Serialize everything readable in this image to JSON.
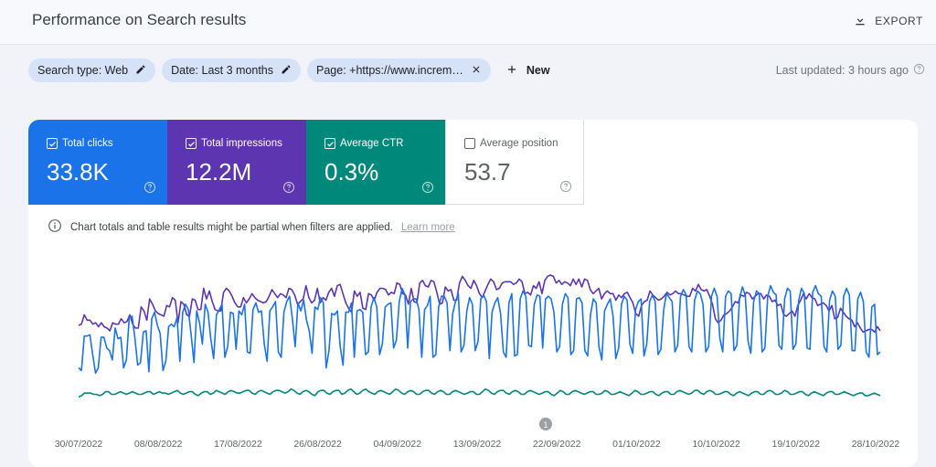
{
  "header": {
    "title": "Performance on Search results",
    "export_label": "EXPORT"
  },
  "filters": {
    "chips": [
      {
        "label": "Search type: Web",
        "icon": "edit-icon"
      },
      {
        "label": "Date: Last 3 months",
        "icon": "edit-icon"
      },
      {
        "label": "Page: +https://www.increm…",
        "icon": "close-icon"
      }
    ],
    "new_label": "New",
    "last_updated": "Last updated: 3 hours ago"
  },
  "metrics": [
    {
      "label": "Total clicks",
      "value": "33.8K",
      "checked": true,
      "color": "#1a73e8"
    },
    {
      "label": "Total impressions",
      "value": "12.2M",
      "checked": true,
      "color": "#5e35b1"
    },
    {
      "label": "Average CTR",
      "value": "0.3%",
      "checked": true,
      "color": "#00897b"
    },
    {
      "label": "Average position",
      "value": "53.7",
      "checked": false,
      "color": "#ffffff"
    }
  ],
  "notice": {
    "text": "Chart totals and table results might be partial when filters are applied.",
    "link": "Learn more"
  },
  "chart_data": {
    "type": "line",
    "x_labels": [
      "30/07/2022",
      "08/08/2022",
      "17/08/2022",
      "26/08/2022",
      "04/09/2022",
      "13/09/2022",
      "22/09/2022",
      "01/10/2022",
      "10/10/2022",
      "19/10/2022",
      "28/10/2022"
    ],
    "annotation": "1",
    "series": [
      {
        "color": "#5e35b1",
        "values": [
          0.62,
          0.63,
          0.7,
          0.66,
          0.66,
          0.63,
          0.64,
          0.61,
          0.64,
          0.61,
          0.6,
          0.58,
          0.64,
          0.63,
          0.63,
          0.67,
          0.64,
          0.65,
          0.7,
          0.63,
          0.6,
          0.6,
          0.76,
          0.73,
          0.66,
          0.82,
          0.78,
          0.73,
          0.71,
          0.7,
          0.69,
          0.77,
          0.76,
          0.83,
          0.81,
          0.64,
          0.8,
          0.78,
          0.7,
          0.69,
          0.82,
          0.81,
          0.74,
          0.74,
          0.9,
          0.82,
          0.88,
          0.8,
          0.74,
          0.73,
          0.73,
          0.87,
          0.9,
          0.88,
          0.84,
          0.79,
          0.76,
          0.76,
          0.83,
          0.79,
          0.82,
          0.86,
          0.83,
          0.81,
          0.8,
          0.79,
          0.8,
          0.84,
          0.89,
          0.86,
          0.83,
          0.86,
          0.85,
          0.83,
          0.9,
          0.89,
          0.85,
          0.78,
          0.8,
          0.82,
          0.92,
          0.83,
          0.79,
          0.81,
          0.9,
          0.79,
          0.83,
          0.81,
          0.87,
          0.9,
          0.84,
          0.92,
          0.93,
          0.86,
          0.79,
          0.75,
          0.72,
          0.88,
          0.84,
          0.87,
          0.75,
          0.74,
          0.86,
          0.85,
          0.81,
          0.87,
          0.9,
          0.9,
          0.89,
          0.85,
          0.87,
          0.86,
          0.94,
          0.93,
          0.86,
          0.85,
          0.78,
          0.9,
          0.8,
          0.79,
          0.94,
          0.96,
          0.92,
          0.91,
          0.96,
          0.95,
          0.87,
          0.78,
          0.79,
          0.91,
          0.88,
          0.89,
          0.81,
          0.81,
          0.94,
          0.99,
          0.96,
          0.92,
          0.9,
          0.96,
          0.92,
          0.86,
          0.83,
          0.88,
          0.93,
          0.97,
          0.95,
          0.89,
          0.9,
          0.94,
          0.95,
          0.95,
          0.95,
          0.93,
          0.94,
          0.97,
          0.95,
          0.86,
          0.87,
          0.85,
          0.92,
          0.9,
          0.95,
          0.86,
          0.96,
          0.99,
          1.0,
          0.99,
          0.94,
          0.96,
          0.93,
          0.95,
          0.94,
          0.92,
          0.97,
          0.93,
          0.97,
          0.91,
          0.97,
          0.96,
          0.89,
          0.86,
          0.88,
          0.9,
          0.82,
          0.86,
          0.88,
          0.86,
          0.86,
          0.81,
          0.85,
          0.83,
          0.86,
          0.87,
          0.83,
          0.79,
          0.71,
          0.69,
          0.77,
          0.8,
          0.81,
          0.88,
          0.85,
          0.83,
          0.81,
          0.82,
          0.84,
          0.87,
          0.85,
          0.86,
          0.88,
          0.86,
          0.86,
          0.85,
          0.84,
          0.84,
          0.9,
          0.88,
          0.93,
          0.89,
          0.88,
          0.89,
          0.84,
          0.78,
          0.67,
          0.64,
          0.66,
          0.7,
          0.71,
          0.73,
          0.76,
          0.8,
          0.79,
          0.85,
          0.84,
          0.87,
          0.86,
          0.82,
          0.84,
          0.86,
          0.86,
          0.82,
          0.85,
          0.84,
          0.8,
          0.81,
          0.77,
          0.78,
          0.7,
          0.69,
          0.71,
          0.73,
          0.69,
          0.77,
          0.81,
          0.86,
          0.82,
          0.86,
          0.83,
          0.82,
          0.77,
          0.78,
          0.79,
          0.77,
          0.73,
          0.77,
          0.67,
          0.68,
          0.75,
          0.72,
          0.69,
          0.67,
          0.66,
          0.61,
          0.64,
          0.6,
          0.57,
          0.58,
          0.59,
          0.59,
          0.57,
          0.61,
          0.58
        ]
      },
      {
        "color": "#1a73e8",
        "values": [
          0.3,
          0.28,
          0.54,
          0.54,
          0.55,
          0.4,
          0.26,
          0.3,
          0.53,
          0.53,
          0.45,
          0.43,
          0.36,
          0.6,
          0.52,
          0.53,
          0.3,
          0.36,
          0.68,
          0.69,
          0.53,
          0.32,
          0.34,
          0.57,
          0.58,
          0.27,
          0.67,
          0.72,
          0.62,
          0.56,
          0.28,
          0.35,
          0.61,
          0.63,
          0.61,
          0.68,
          0.35,
          0.72,
          0.78,
          0.74,
          0.55,
          0.34,
          0.73,
          0.64,
          0.48,
          0.78,
          0.72,
          0.52,
          0.37,
          0.7,
          0.74,
          0.78,
          0.38,
          0.46,
          0.72,
          0.71,
          0.44,
          0.73,
          0.7,
          0.78,
          0.42,
          0.41,
          0.74,
          0.79,
          0.72,
          0.73,
          0.48,
          0.35,
          0.73,
          0.76,
          0.8,
          0.42,
          0.38,
          0.72,
          0.8,
          0.84,
          0.67,
          0.46,
          0.79,
          0.73,
          0.81,
          0.66,
          0.58,
          0.41,
          0.76,
          0.74,
          0.83,
          0.79,
          0.3,
          0.43,
          0.71,
          0.7,
          0.73,
          0.46,
          0.32,
          0.72,
          0.72,
          0.79,
          0.38,
          0.73,
          0.74,
          0.72,
          0.4,
          0.42,
          0.76,
          0.83,
          0.76,
          0.4,
          0.48,
          0.76,
          0.78,
          0.79,
          0.45,
          0.51,
          0.8,
          0.9,
          0.85,
          0.45,
          0.8,
          0.82,
          0.82,
          0.74,
          0.38,
          0.74,
          0.77,
          0.84,
          0.38,
          0.4,
          0.76,
          0.84,
          0.84,
          0.79,
          0.43,
          0.71,
          0.8,
          0.86,
          0.42,
          0.47,
          0.73,
          0.83,
          0.78,
          0.43,
          0.5,
          0.82,
          0.85,
          0.8,
          0.37,
          0.72,
          0.79,
          0.83,
          0.71,
          0.42,
          0.38,
          0.79,
          0.86,
          0.39,
          0.4,
          0.82,
          0.88,
          0.84,
          0.47,
          0.46,
          0.78,
          0.85,
          0.84,
          0.45,
          0.82,
          0.84,
          0.82,
          0.72,
          0.42,
          0.46,
          0.78,
          0.86,
          0.83,
          0.4,
          0.43,
          0.82,
          0.83,
          0.79,
          0.43,
          0.39,
          0.7,
          0.82,
          0.79,
          0.46,
          0.36,
          0.73,
          0.78,
          0.82,
          0.69,
          0.37,
          0.45,
          0.78,
          0.84,
          0.81,
          0.48,
          0.41,
          0.74,
          0.8,
          0.82,
          0.39,
          0.48,
          0.8,
          0.85,
          0.8,
          0.4,
          0.44,
          0.74,
          0.86,
          0.83,
          0.8,
          0.42,
          0.47,
          0.84,
          0.89,
          0.85,
          0.46,
          0.42,
          0.81,
          0.88,
          0.86,
          0.78,
          0.42,
          0.46,
          0.84,
          0.9,
          0.84,
          0.52,
          0.42,
          0.84,
          0.88,
          0.86,
          0.43,
          0.47,
          0.83,
          0.91,
          0.85,
          0.5,
          0.41,
          0.8,
          0.88,
          0.86,
          0.42,
          0.45,
          0.84,
          0.92,
          0.87,
          0.85,
          0.47,
          0.44,
          0.82,
          0.9,
          0.88,
          0.44,
          0.48,
          0.81,
          0.9,
          0.86,
          0.45,
          0.44,
          0.87,
          0.92,
          0.86,
          0.84,
          0.46,
          0.42,
          0.81,
          0.88,
          0.84,
          0.44,
          0.47,
          0.84,
          0.9,
          0.85,
          0.43,
          0.43,
          0.82,
          0.87,
          0.8,
          0.42,
          0.38,
          0.76,
          0.78,
          0.4,
          0.42
        ]
      },
      {
        "color": "#00897b",
        "values": [
          0.08,
          0.09,
          0.11,
          0.11,
          0.11,
          0.1,
          0.1,
          0.09,
          0.1,
          0.12,
          0.12,
          0.1,
          0.1,
          0.11,
          0.12,
          0.11,
          0.1,
          0.11,
          0.12,
          0.11,
          0.1,
          0.1,
          0.11,
          0.12,
          0.12,
          0.1,
          0.11,
          0.12,
          0.11,
          0.11,
          0.1,
          0.11,
          0.12,
          0.13,
          0.11,
          0.1,
          0.11,
          0.12,
          0.12,
          0.1,
          0.09,
          0.11,
          0.12,
          0.12,
          0.1,
          0.11,
          0.13,
          0.12,
          0.11,
          0.1,
          0.12,
          0.13,
          0.12,
          0.11,
          0.11,
          0.12,
          0.13,
          0.13,
          0.11,
          0.1,
          0.12,
          0.13,
          0.12,
          0.11,
          0.1,
          0.12,
          0.13,
          0.13,
          0.12,
          0.11,
          0.12,
          0.14,
          0.13,
          0.11,
          0.1,
          0.12,
          0.13,
          0.12,
          0.1,
          0.09,
          0.12,
          0.13,
          0.13,
          0.11,
          0.1,
          0.12,
          0.13,
          0.13,
          0.1,
          0.11,
          0.13,
          0.14,
          0.12,
          0.1,
          0.11,
          0.13,
          0.14,
          0.12,
          0.11,
          0.1,
          0.12,
          0.13,
          0.12,
          0.11,
          0.1,
          0.12,
          0.14,
          0.13,
          0.11,
          0.1,
          0.12,
          0.13,
          0.12,
          0.1,
          0.1,
          0.12,
          0.13,
          0.13,
          0.11,
          0.1,
          0.12,
          0.13,
          0.12,
          0.1,
          0.1,
          0.12,
          0.13,
          0.12,
          0.11,
          0.1,
          0.11,
          0.12,
          0.12,
          0.1,
          0.1,
          0.12,
          0.14,
          0.13,
          0.11,
          0.1,
          0.12,
          0.13,
          0.13,
          0.11,
          0.1,
          0.12,
          0.13,
          0.12,
          0.1,
          0.1,
          0.12,
          0.13,
          0.12,
          0.11,
          0.1,
          0.11,
          0.12,
          0.12,
          0.1,
          0.09,
          0.11,
          0.13,
          0.12,
          0.1,
          0.1,
          0.12,
          0.13,
          0.12,
          0.11,
          0.1,
          0.11,
          0.12,
          0.12,
          0.1,
          0.1,
          0.11,
          0.13,
          0.12,
          0.1,
          0.1,
          0.11,
          0.12,
          0.11,
          0.1,
          0.09,
          0.11,
          0.13,
          0.12,
          0.1,
          0.1,
          0.11,
          0.12,
          0.12,
          0.1,
          0.09,
          0.11,
          0.12,
          0.12,
          0.1,
          0.1,
          0.12,
          0.13,
          0.12,
          0.11,
          0.1,
          0.11,
          0.13,
          0.13,
          0.11,
          0.1,
          0.12,
          0.13,
          0.12,
          0.1,
          0.1,
          0.11,
          0.12,
          0.12,
          0.1,
          0.09,
          0.11,
          0.12,
          0.11,
          0.1,
          0.09,
          0.11,
          0.12,
          0.12,
          0.1,
          0.1,
          0.12,
          0.13,
          0.12,
          0.1,
          0.1,
          0.11,
          0.13,
          0.12,
          0.1,
          0.1,
          0.11,
          0.12,
          0.12,
          0.1,
          0.09,
          0.11,
          0.12,
          0.11,
          0.1,
          0.09,
          0.11,
          0.12,
          0.12,
          0.1,
          0.1,
          0.11,
          0.12,
          0.11,
          0.1,
          0.09,
          0.1,
          0.11,
          0.11,
          0.09,
          0.09,
          0.1,
          0.11,
          0.1,
          0.09
        ]
      }
    ]
  }
}
